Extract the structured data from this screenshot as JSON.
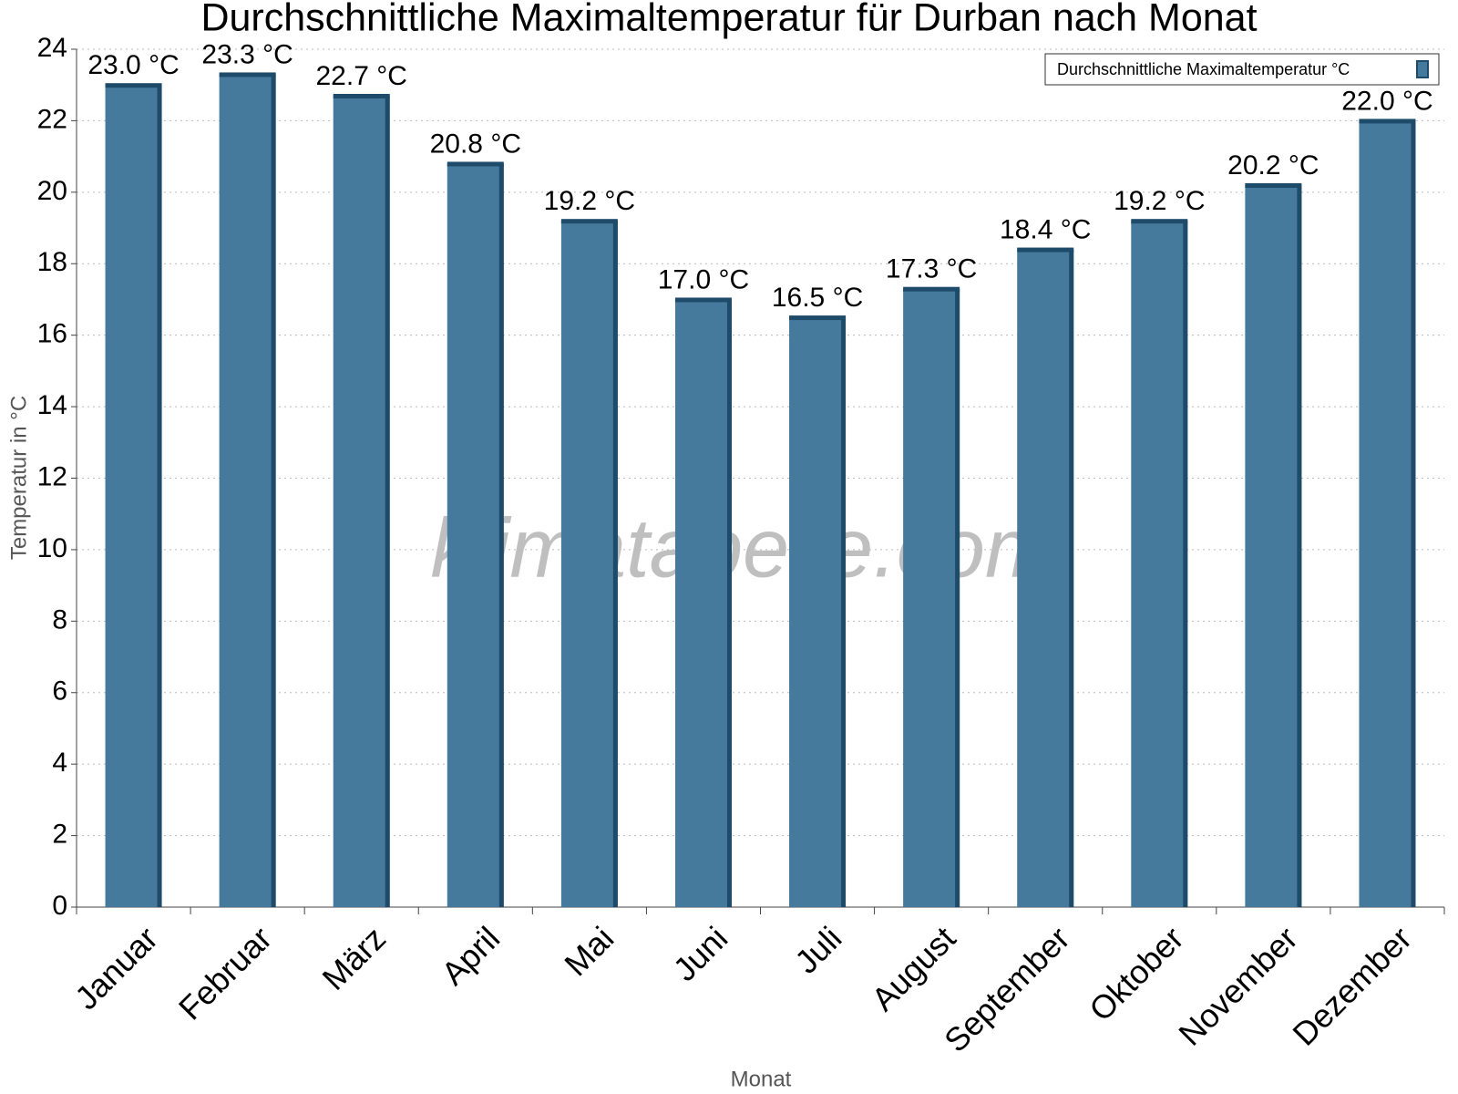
{
  "chart_data": {
    "type": "bar",
    "title": "Durchschnittliche Maximaltemperatur für Durban nach Monat",
    "x_label": "Monat",
    "y_label": "Temperatur in °C",
    "watermark": "klimatabelle.com",
    "categories": [
      "Januar",
      "Februar",
      "März",
      "April",
      "Mai",
      "Juni",
      "Juli",
      "August",
      "September",
      "Oktober",
      "November",
      "Dezember"
    ],
    "series": [
      {
        "name": "Durchschnittliche Maximaltemperatur °C",
        "color": "#467a9c",
        "values": [
          23.0,
          23.3,
          22.7,
          20.8,
          19.2,
          17.0,
          16.5,
          17.3,
          18.4,
          19.2,
          20.2,
          22.0
        ],
        "value_labels": [
          "23.0 °C",
          "23.3 °C",
          "22.7 °C",
          "20.8 °C",
          "19.2 °C",
          "17.0 °C",
          "16.5 °C",
          "17.3 °C",
          "18.4 °C",
          "19.2 °C",
          "20.2 °C",
          "22.0 °C"
        ]
      }
    ],
    "ylim": [
      0,
      24
    ],
    "yticks": [
      0,
      2,
      4,
      6,
      8,
      10,
      12,
      14,
      16,
      18,
      20,
      22,
      24
    ],
    "grid": true
  }
}
